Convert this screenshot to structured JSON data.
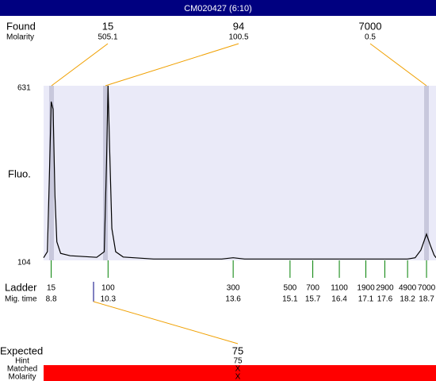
{
  "title": "CM020427 (6:10)",
  "found": {
    "label": "Found",
    "molarity_label": "Molarity",
    "peaks": [
      {
        "size": 15,
        "molarity": 505.1
      },
      {
        "size": 94,
        "molarity": 100.5
      },
      {
        "size": 7000,
        "molarity": 0.5
      }
    ]
  },
  "chart_data": {
    "type": "line",
    "y_label": "Fluo.",
    "color": "#000000",
    "x": [
      8.6,
      8.7,
      8.75,
      8.8,
      8.85,
      8.9,
      8.95,
      9.05,
      9.3,
      10.0,
      10.2,
      10.26,
      10.3,
      10.34,
      10.4,
      10.5,
      10.7,
      11.5,
      13.3,
      13.6,
      13.9,
      18.2,
      18.4,
      18.55,
      18.7,
      18.8,
      18.9,
      18.95
    ],
    "values": [
      112,
      130,
      350,
      583,
      560,
      300,
      160,
      125,
      118,
      113,
      130,
      400,
      631,
      450,
      200,
      130,
      114,
      108,
      108,
      112,
      108,
      108,
      112,
      135,
      183,
      150,
      120,
      112
    ],
    "xlim": [
      8.6,
      18.95
    ],
    "ylim": [
      104,
      631
    ],
    "yticks": [
      631,
      104
    ]
  },
  "ladder": {
    "label": "Ladder",
    "time_label": "Mig. time",
    "sizes": [
      15,
      100,
      300,
      500,
      700,
      1100,
      1900,
      2900,
      4900,
      7000
    ],
    "times": [
      8.8,
      10.3,
      13.6,
      15.1,
      15.7,
      16.4,
      17.1,
      17.6,
      18.2,
      18.7
    ]
  },
  "expected": {
    "label": "Expected",
    "value": 75,
    "rows": [
      {
        "label": "Hint",
        "value": 75
      },
      {
        "label": "Matched",
        "value": "X"
      },
      {
        "label": "Molarity",
        "value": "X"
      }
    ]
  }
}
